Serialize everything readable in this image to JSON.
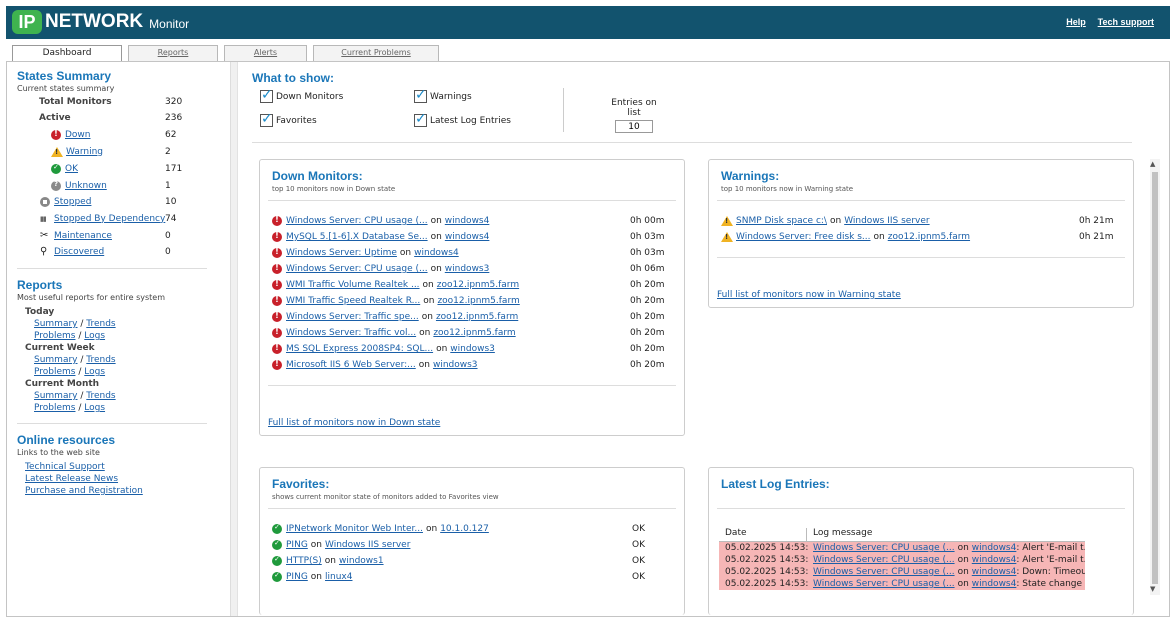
{
  "header": {
    "logo_ip": "IP",
    "logo_network": "NETWORK",
    "logo_monitor": "Monitor",
    "help": "Help",
    "tech_support": "Tech support"
  },
  "tabs": [
    "Dashboard",
    "Reports",
    "Alerts",
    "Current Problems"
  ],
  "states_summary": {
    "title": "States Summary",
    "subtitle": "Current states summary",
    "total_label": "Total Monitors",
    "total": "320",
    "active_label": "Active",
    "active": "236",
    "down_label": "Down",
    "down": "62",
    "warning_label": "Warning",
    "warning": "2",
    "ok_label": "OK",
    "ok": "171",
    "unknown_label": "Unknown",
    "unknown": "1",
    "stopped_label": "Stopped",
    "stopped": "10",
    "dependency_label": "Stopped By Dependency",
    "dependency": "74",
    "maintenance_label": "Maintenance",
    "maintenance": "0",
    "discovered_label": "Discovered",
    "discovered": "0"
  },
  "reports": {
    "title": "Reports",
    "subtitle": "Most useful reports for entire system",
    "groups": [
      "Today",
      "Current Week",
      "Current Month"
    ],
    "summary": "Summary",
    "trends": "Trends",
    "problems": "Problems",
    "logs": "Logs",
    "slash": "/"
  },
  "online": {
    "title": "Online resources",
    "subtitle": "Links to the web site",
    "links": [
      "Technical Support",
      "Latest Release News",
      "Purchase and Registration"
    ]
  },
  "what_to_show": {
    "title": "What to show:",
    "down": "Down Monitors",
    "warnings": "Warnings",
    "favorites": "Favorites",
    "log": "Latest Log Entries",
    "entries_label": "Entries on list",
    "entries_value": "10"
  },
  "on": "on",
  "down_panel": {
    "title": "Down Monitors:",
    "subtitle": "top 10 monitors now in Down state",
    "rows": [
      {
        "monitor": "Windows Server: CPU usage (...",
        "host": "windows4",
        "time": "0h 00m"
      },
      {
        "monitor": "MySQL 5.[1-6].X Database Se...",
        "host": "windows4",
        "time": "0h 03m"
      },
      {
        "monitor": "Windows Server: Uptime",
        "host": "windows4",
        "time": "0h 03m"
      },
      {
        "monitor": "Windows Server: CPU usage (...",
        "host": "windows3",
        "time": "0h 06m"
      },
      {
        "monitor": "WMI Traffic Volume Realtek ...",
        "host": "zoo12.ipnm5.farm",
        "time": "0h 20m"
      },
      {
        "monitor": "WMI Traffic Speed Realtek R...",
        "host": "zoo12.ipnm5.farm",
        "time": "0h 20m"
      },
      {
        "monitor": "Windows Server: Traffic spe...",
        "host": "zoo12.ipnm5.farm",
        "time": "0h 20m"
      },
      {
        "monitor": "Windows Server: Traffic vol...",
        "host": "zoo12.ipnm5.farm",
        "time": "0h 20m"
      },
      {
        "monitor": "MS SQL Express 2008SP4: SQL...",
        "host": "windows3",
        "time": "0h 20m"
      },
      {
        "monitor": "Microsoft IIS 6 Web Server:...",
        "host": "windows3",
        "time": "0h 20m"
      }
    ],
    "full_link": "Full list of monitors now in Down state"
  },
  "warn_panel": {
    "title": "Warnings:",
    "subtitle": "top 10 monitors now in Warning state",
    "rows": [
      {
        "monitor": "SNMP Disk space c:\\",
        "host": "Windows IIS server",
        "time": "0h 21m"
      },
      {
        "monitor": "Windows Server: Free disk s...",
        "host": "zoo12.ipnm5.farm",
        "time": "0h 21m"
      }
    ],
    "full_link": "Full list of monitors now in Warning state"
  },
  "fav_panel": {
    "title": "Favorites:",
    "subtitle": "shows current monitor state of monitors added to Favorites view",
    "rows": [
      {
        "monitor": "IPNetwork Monitor Web Inter...",
        "host": "10.1.0.127",
        "state": "OK"
      },
      {
        "monitor": "PING",
        "host": "Windows IIS server",
        "state": "OK"
      },
      {
        "monitor": "HTTP(S)",
        "host": "windows1",
        "state": "OK"
      },
      {
        "monitor": "PING",
        "host": "linux4",
        "state": "OK"
      }
    ]
  },
  "log_panel": {
    "title": "Latest Log Entries:",
    "col_date": "Date",
    "col_msg": "Log message",
    "rows": [
      {
        "date": "05.02.2025 14:53:",
        "monitor": "Windows Server: CPU usage (...",
        "host": "windows4",
        "msg": ": Alert 'E-mail t..."
      },
      {
        "date": "05.02.2025 14:53:",
        "monitor": "Windows Server: CPU usage (...",
        "host": "windows4",
        "msg": ": Alert 'E-mail t..."
      },
      {
        "date": "05.02.2025 14:53:",
        "monitor": "Windows Server: CPU usage (...",
        "host": "windows4",
        "msg": ": Down: Timeout o..."
      },
      {
        "date": "05.02.2025 14:53:",
        "monitor": "Windows Server: CPU usage (...",
        "host": "windows4",
        "msg": ": State change [O..."
      }
    ]
  },
  "colors": {
    "header_bg": "#12536e",
    "accent": "#1a76b8",
    "ip_green": "#3fb34f",
    "down_red": "#c8202a",
    "log_red": "#f6b6b6"
  }
}
